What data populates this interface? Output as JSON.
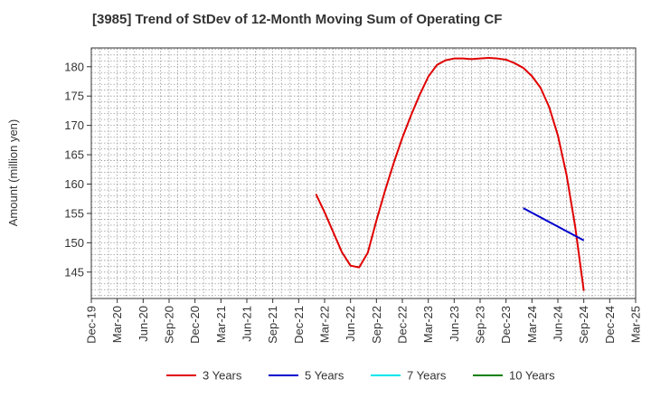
{
  "chart_data": {
    "type": "line",
    "title": "[3985]  Trend of StDev of 12-Month Moving Sum of Operating CF",
    "xlabel": "",
    "ylabel": "Amount (million yen)",
    "ylim": [
      140.5,
      183.2
    ],
    "yticks": [
      145,
      150,
      155,
      160,
      165,
      170,
      175,
      180
    ],
    "xticks": [
      "Dec-19",
      "Mar-20",
      "Jun-20",
      "Sep-20",
      "Dec-20",
      "Mar-21",
      "Jun-21",
      "Sep-21",
      "Dec-21",
      "Mar-22",
      "Jun-22",
      "Sep-22",
      "Dec-22",
      "Mar-23",
      "Jun-23",
      "Sep-23",
      "Dec-23",
      "Mar-24",
      "Jun-24",
      "Sep-24",
      "Dec-24",
      "Mar-25"
    ],
    "grid": true,
    "legend_position": "bottom",
    "series": [
      {
        "name": "3 Years",
        "color": "#e00000",
        "x": [
          "Feb-22",
          "Mar-22",
          "Apr-22",
          "May-22",
          "Jun-22",
          "Jul-22",
          "Aug-22",
          "Sep-22",
          "Oct-22",
          "Nov-22",
          "Dec-22",
          "Jan-23",
          "Feb-23",
          "Mar-23",
          "Apr-23",
          "May-23",
          "Jun-23",
          "Jul-23",
          "Aug-23",
          "Sep-23",
          "Oct-23",
          "Nov-23",
          "Dec-23",
          "Jan-24",
          "Feb-24",
          "Mar-24",
          "Apr-24",
          "May-24",
          "Jun-24",
          "Jul-24",
          "Aug-24",
          "Sep-24"
        ],
        "values": [
          158.3,
          155.2,
          151.8,
          148.4,
          146.1,
          145.8,
          148.3,
          153.8,
          158.9,
          163.6,
          167.9,
          171.7,
          175.2,
          178.3,
          180.3,
          181.1,
          181.4,
          181.4,
          181.3,
          181.4,
          181.5,
          181.4,
          181.2,
          180.6,
          179.8,
          178.4,
          176.4,
          173.1,
          168.3,
          161.6,
          152.8,
          141.8
        ]
      },
      {
        "name": "5 Years",
        "color": "#0000cc",
        "x": [
          "Feb-24",
          "Sep-24"
        ],
        "values": [
          155.9,
          150.4
        ]
      },
      {
        "name": "7 Years",
        "color": "#00e5ee",
        "x": [],
        "values": []
      },
      {
        "name": "10 Years",
        "color": "#008000",
        "x": [],
        "values": []
      }
    ]
  }
}
